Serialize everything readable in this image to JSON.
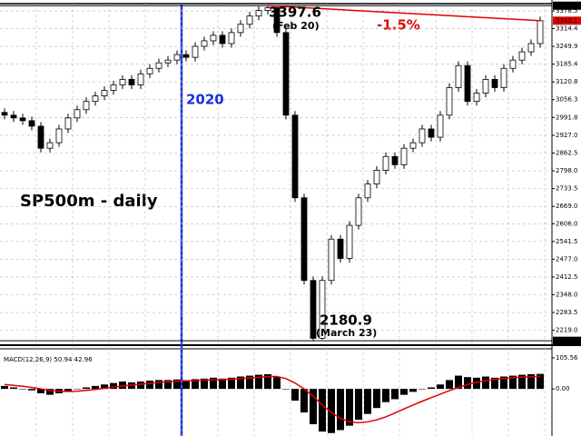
{
  "chart_data": [
    {
      "type": "candlestick",
      "color_up": "#ffffff",
      "color_down": "#000000",
      "wick_color": "#000000",
      "open": [
        3010,
        3000,
        2990,
        2980,
        2960,
        2880,
        2900,
        2950,
        2990,
        3020,
        3050,
        3070,
        3090,
        3110,
        3130,
        3110,
        3150,
        3170,
        3190,
        3200,
        3220,
        3210,
        3250,
        3270,
        3290,
        3260,
        3300,
        3330,
        3360,
        3380,
        3390,
        3300,
        3000,
        2700,
        2400,
        2190,
        2400,
        2550,
        2480,
        2600,
        2700,
        2750,
        2800,
        2850,
        2820,
        2880,
        2900,
        2950,
        2920,
        3000,
        3100,
        3180,
        3050,
        3080,
        3130,
        3100,
        3170,
        3200,
        3230,
        3260
      ],
      "high": [
        3025,
        3015,
        3005,
        2995,
        2975,
        2915,
        2965,
        3005,
        3035,
        3065,
        3085,
        3105,
        3125,
        3145,
        3145,
        3165,
        3185,
        3205,
        3215,
        3235,
        3235,
        3265,
        3285,
        3305,
        3305,
        3315,
        3345,
        3375,
        3395,
        3397.6,
        3395,
        3315,
        3015,
        2715,
        2415,
        2415,
        2565,
        2565,
        2615,
        2715,
        2765,
        2815,
        2865,
        2865,
        2895,
        2915,
        2965,
        2965,
        3015,
        3115,
        3195,
        3195,
        3095,
        3145,
        3145,
        3185,
        3215,
        3245,
        3275,
        3358
      ],
      "low": [
        2985,
        2975,
        2965,
        2945,
        2865,
        2865,
        2885,
        2935,
        2975,
        3005,
        3035,
        3055,
        3075,
        3095,
        3095,
        3095,
        3135,
        3155,
        3175,
        3185,
        3195,
        3195,
        3235,
        3255,
        3245,
        3245,
        3285,
        3315,
        3345,
        3365,
        3285,
        2985,
        2685,
        2385,
        2180.9,
        2185,
        2385,
        2465,
        2465,
        2585,
        2685,
        2735,
        2785,
        2805,
        2805,
        2865,
        2885,
        2905,
        2905,
        2985,
        3085,
        3035,
        3035,
        3065,
        3085,
        3085,
        3155,
        3185,
        3215,
        3245
      ],
      "close": [
        3000,
        2990,
        2980,
        2960,
        2880,
        2900,
        2950,
        2990,
        3020,
        3050,
        3070,
        3090,
        3110,
        3130,
        3110,
        3150,
        3170,
        3190,
        3200,
        3220,
        3210,
        3250,
        3270,
        3290,
        3260,
        3300,
        3330,
        3360,
        3380,
        3390,
        3300,
        3000,
        2700,
        2400,
        2190,
        2400,
        2550,
        2480,
        2600,
        2700,
        2750,
        2800,
        2850,
        2820,
        2880,
        2900,
        2950,
        2920,
        3000,
        3100,
        3180,
        3050,
        3080,
        3130,
        3100,
        3170,
        3200,
        3230,
        3260,
        3343
      ],
      "ylim": [
        2165,
        3405
      ],
      "yticks": [
        3378.5,
        3314.4,
        3249.9,
        3185.4,
        3120.8,
        3056.3,
        2991.8,
        {
          "value": 2927,
          "label": "2927.0"
        },
        2862.5,
        {
          "value": 2798,
          "label": "2798.0"
        },
        2733.5,
        {
          "value": 2669,
          "label": "2669.0"
        },
        {
          "value": 2606,
          "label": "2606.0"
        },
        2541.5,
        {
          "value": 2477,
          "label": "2477.0"
        },
        2412.5,
        {
          "value": 2348,
          "label": "2348.0"
        },
        2283.5,
        {
          "value": 2219,
          "label": "2219.0"
        }
      ],
      "grid": true,
      "peak": {
        "value": 3397.6,
        "date": "(Feb 20)"
      },
      "trough": {
        "value": 2180.9,
        "date": "(March 23)"
      },
      "last_price": 3343.1,
      "change_label": "-1.5%",
      "vline_label": "2020",
      "symbol_label": "SP500m - daily"
    },
    {
      "type": "macd",
      "title": "MACD(12,26,9) 50.94 42.96",
      "series": [
        {
          "name": "MACD",
          "color": "#000000",
          "values": [
            10,
            5,
            0,
            -5,
            -15,
            -20,
            -15,
            -8,
            0,
            5,
            10,
            15,
            20,
            25,
            22,
            25,
            28,
            30,
            30,
            32,
            30,
            33,
            35,
            38,
            35,
            38,
            42,
            45,
            48,
            50,
            40,
            0,
            -40,
            -80,
            -120,
            -145,
            -150,
            -140,
            -125,
            -105,
            -85,
            -65,
            -45,
            -35,
            -20,
            -10,
            0,
            5,
            15,
            30,
            45,
            40,
            38,
            42,
            38,
            42,
            45,
            48,
            50,
            50.94
          ]
        },
        {
          "name": "Signal",
          "color": "#e00000",
          "values": [
            15,
            12,
            9,
            5,
            0,
            -5,
            -8,
            -9,
            -8,
            -5,
            -2,
            2,
            6,
            10,
            13,
            16,
            19,
            22,
            24,
            26,
            27,
            28,
            30,
            31,
            32,
            33,
            35,
            37,
            39,
            42,
            42,
            35,
            20,
            0,
            -25,
            -55,
            -80,
            -100,
            -112,
            -115,
            -112,
            -105,
            -95,
            -82,
            -68,
            -55,
            -42,
            -30,
            -18,
            -6,
            5,
            15,
            22,
            28,
            32,
            35,
            38,
            40,
            41,
            42.96
          ]
        }
      ],
      "ylim": [
        -160,
        130
      ],
      "yticks": [
        105.56,
        {
          "value": 0,
          "label": "0.00"
        }
      ]
    }
  ]
}
